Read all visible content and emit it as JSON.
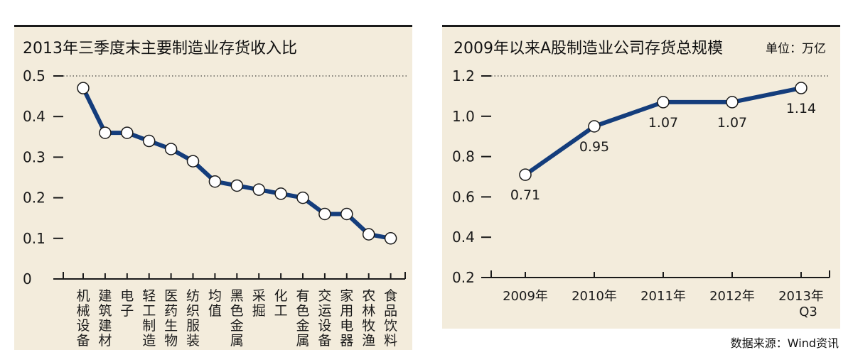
{
  "source": "数据来源：Wind资讯",
  "colors": {
    "line": "#143d7c",
    "panel": "#f3ecdc",
    "marker_fill": "#ffffff",
    "axis": "#1a1a1a"
  },
  "chart_data": [
    {
      "type": "line",
      "title": "2013年三季度末主要制造业存货收入比",
      "categories": [
        "机械设备",
        "建筑建材",
        "电子",
        "轻工制造",
        "医药生物",
        "纺织服装",
        "均值",
        "黑色金属",
        "采掘",
        "化工",
        "有色金属",
        "交运设备",
        "家用电器",
        "农林牧渔",
        "食品饮料"
      ],
      "series": [
        {
          "values": [
            0.47,
            0.36,
            0.36,
            0.34,
            0.32,
            0.29,
            0.24,
            0.23,
            0.22,
            0.21,
            0.2,
            0.16,
            0.16,
            0.11,
            0.1
          ]
        }
      ],
      "yticks": [
        "0",
        "0.1",
        "0.2",
        "0.3",
        "0.4",
        "0.5"
      ],
      "ylim": [
        0,
        0.5
      ],
      "reference_line": 0.5,
      "data_labels": false
    },
    {
      "type": "line",
      "title": "2009年以来A股制造业公司存货总规模",
      "unit": "单位：万亿",
      "categories": [
        "2009年",
        "2010年",
        "2011年",
        "2012年",
        "2013年\nQ3"
      ],
      "series": [
        {
          "values": [
            0.71,
            0.95,
            1.07,
            1.07,
            1.14
          ]
        }
      ],
      "data_labels": [
        "0.71",
        "0.95",
        "1.07",
        "1.07",
        "1.14"
      ],
      "yticks": [
        "0.2",
        "0.4",
        "0.6",
        "0.8",
        "1.0",
        "1.2"
      ],
      "ylim": [
        0.2,
        1.2
      ],
      "reference_line": 1.2
    }
  ]
}
